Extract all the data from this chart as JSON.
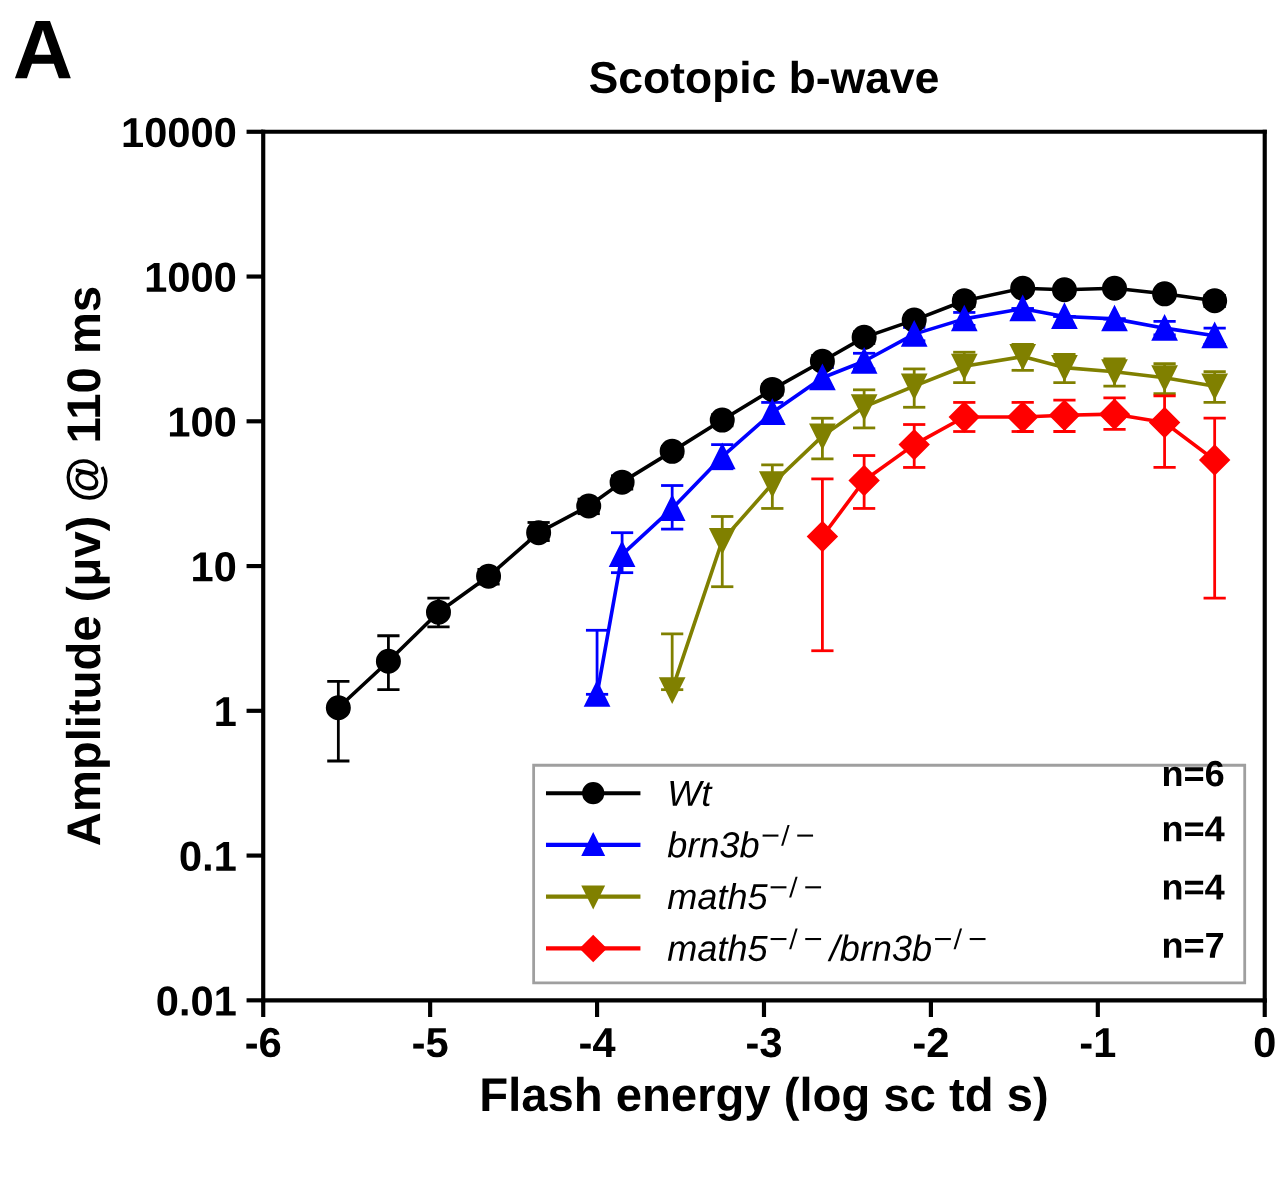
{
  "chart_data": {
    "type": "line",
    "title": "Scotopic b-wave",
    "xlabel": "Flash energy (log sc td s)",
    "ylabel": "Amplitude (μv) @ 110 ms",
    "annotations": [
      "A",
      "n=6",
      "n=4",
      "n=4",
      "n=7"
    ],
    "log": "y",
    "xlim": [
      -6,
      0
    ],
    "xticks": [
      -6,
      -5,
      -4,
      -3,
      -2,
      -1,
      0
    ],
    "ylim": [
      0.01,
      10000
    ],
    "yticks": [
      0.01,
      0.1,
      1,
      10,
      100,
      1000,
      10000
    ],
    "grid": false,
    "legend": "bottom right",
    "line_style": "solid",
    "series": [
      {
        "name": "Wt",
        "color": "#000000",
        "marker": "circle",
        "x": [
          -5.55,
          -5.25,
          -4.95,
          -4.65,
          -4.35,
          -4.05,
          -3.85,
          -3.55,
          -3.25,
          -2.95,
          -2.65,
          -2.4,
          -2.1,
          -1.8,
          -1.45,
          -1.2,
          -0.9,
          -0.6,
          -0.3
        ],
        "values": [
          1.05,
          2.2,
          4.8,
          8.5,
          17,
          26,
          38,
          62,
          102,
          166,
          260,
          380,
          500,
          680,
          830,
          810,
          830,
          760,
          680
        ],
        "errors": [
          [
            0.45,
            1.6
          ],
          [
            1.4,
            3.3
          ],
          [
            3.8,
            6
          ],
          [
            7.5,
            9.5
          ],
          [
            15,
            20
          ],
          [
            23,
            29
          ],
          [
            34,
            42
          ],
          [
            57,
            67
          ],
          [
            93,
            111
          ],
          [
            152,
            180
          ],
          [
            235,
            285
          ],
          [
            345,
            415
          ],
          [
            460,
            540
          ],
          [
            620,
            740
          ],
          [
            770,
            890
          ],
          null,
          null,
          null,
          [
            620,
            740
          ]
        ]
      },
      {
        "name": "brn3b$^{−/−}$",
        "color": "#0000ff",
        "marker": "triangle",
        "x": [
          -4.0,
          -3.85,
          -3.55,
          -3.25,
          -2.95,
          -2.65,
          -2.4,
          -2.1,
          -1.8,
          -1.45,
          -1.2,
          -0.9,
          -0.6,
          -0.3
        ],
        "values": [
          1.3,
          12,
          25,
          57,
          115,
          200,
          260,
          400,
          510,
          600,
          530,
          510,
          440,
          390
        ],
        "errors": [
          [
            1.3,
            3.6
          ],
          [
            9,
            17
          ],
          [
            18,
            36
          ],
          [
            47,
            69
          ],
          [
            100,
            135
          ],
          [
            170,
            235
          ],
          [
            230,
            295
          ],
          [
            360,
            445
          ],
          [
            460,
            565
          ],
          null,
          null,
          null,
          [
            395,
            490
          ],
          [
            340,
            440
          ]
        ]
      },
      {
        "name": "math5$^{−/−}$",
        "color": "#808000",
        "marker": "triangle_down",
        "x": [
          -3.55,
          -3.25,
          -2.95,
          -2.65,
          -2.4,
          -2.1,
          -1.8,
          -1.45,
          -1.2,
          -0.9,
          -0.6,
          -0.3
        ],
        "values": [
          1.4,
          15,
          37,
          79,
          126,
          175,
          240,
          280,
          235,
          220,
          200,
          175
        ],
        "errors": [
          [
            1.4,
            3.4
          ],
          [
            7.2,
            22
          ],
          [
            25,
            50
          ],
          [
            55,
            105
          ],
          [
            90,
            165
          ],
          [
            125,
            230
          ],
          [
            185,
            300
          ],
          [
            225,
            340
          ],
          [
            185,
            290
          ],
          [
            175,
            270
          ],
          [
            155,
            250
          ],
          [
            135,
            220
          ]
        ]
      },
      {
        "name": "math5$^{−/−}$/brn3b$^{−/−}$",
        "color": "#ff0000",
        "marker": "diamond",
        "x": [
          -2.65,
          -2.4,
          -2.1,
          -1.8,
          -1.45,
          -1.2,
          -0.9,
          -0.6,
          -0.3
        ],
        "values": [
          16,
          39,
          69,
          107,
          107,
          110,
          112,
          98,
          54
        ],
        "errors": [
          [
            2.6,
            40
          ],
          [
            25,
            58
          ],
          [
            48,
            95
          ],
          [
            85,
            135
          ],
          [
            85,
            135
          ],
          [
            85,
            140
          ],
          [
            88,
            145
          ],
          [
            48,
            150
          ],
          [
            6,
            105
          ]
        ]
      }
    ]
  }
}
